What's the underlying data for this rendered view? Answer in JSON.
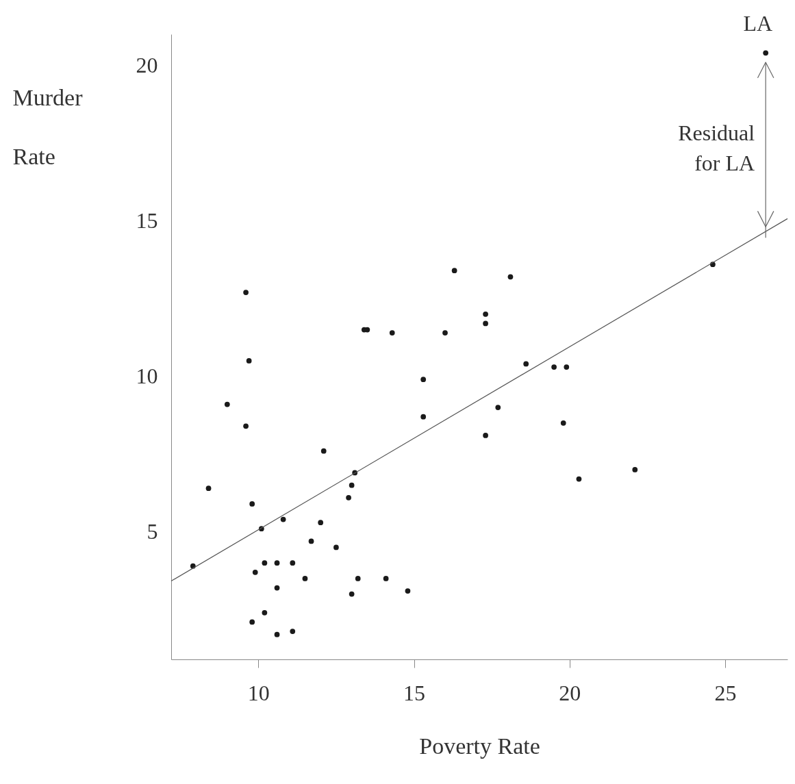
{
  "chart_data": {
    "type": "scatter",
    "xlabel": "Poverty Rate",
    "ylabel": "Murder Rate",
    "xlim": [
      7.2,
      27.0
    ],
    "ylim": [
      0.9,
      21.0
    ],
    "xticks": [
      10,
      15,
      20,
      25
    ],
    "yticks": [
      5,
      10,
      15,
      20
    ],
    "line_style": "solid",
    "series": [
      {
        "color": "#1a1a1a",
        "marker": "circle",
        "x": [
          7.9,
          8.4,
          9.0,
          9.6,
          9.7,
          9.6,
          9.8,
          10.1,
          9.9,
          10.2,
          10.6,
          11.1,
          10.6,
          9.8,
          10.2,
          10.6,
          11.1,
          10.8,
          11.5,
          11.7,
          12.0,
          12.1,
          12.5,
          12.9,
          13.0,
          13.1,
          13.0,
          13.2,
          13.4,
          13.5,
          14.3,
          14.1,
          14.8,
          15.3,
          15.3,
          16.0,
          16.3,
          17.3,
          17.3,
          17.3,
          17.7,
          18.1,
          18.6,
          19.5,
          19.9,
          19.8,
          20.3,
          22.1,
          24.6,
          26.3
        ],
        "values": [
          3.9,
          6.4,
          9.1,
          12.7,
          10.5,
          8.4,
          5.9,
          5.1,
          3.7,
          4.0,
          4.0,
          4.0,
          3.2,
          2.1,
          2.4,
          1.7,
          1.8,
          5.4,
          3.5,
          4.7,
          5.3,
          7.6,
          4.5,
          6.1,
          6.5,
          6.9,
          3.0,
          3.5,
          11.5,
          11.5,
          11.4,
          3.5,
          3.1,
          9.9,
          8.7,
          11.4,
          13.4,
          12.0,
          11.7,
          8.1,
          9.0,
          13.2,
          10.4,
          10.3,
          10.3,
          8.5,
          6.7,
          7.0,
          13.6,
          20.4
        ]
      },
      {
        "type": "line",
        "color": "#555555",
        "x": [
          7.2,
          27.0
        ],
        "values": [
          3.42,
          15.07
        ]
      }
    ],
    "annotations": [
      {
        "text": "LA",
        "x": 26.3,
        "y": 20.4
      },
      "Residual for LA"
    ]
  }
}
